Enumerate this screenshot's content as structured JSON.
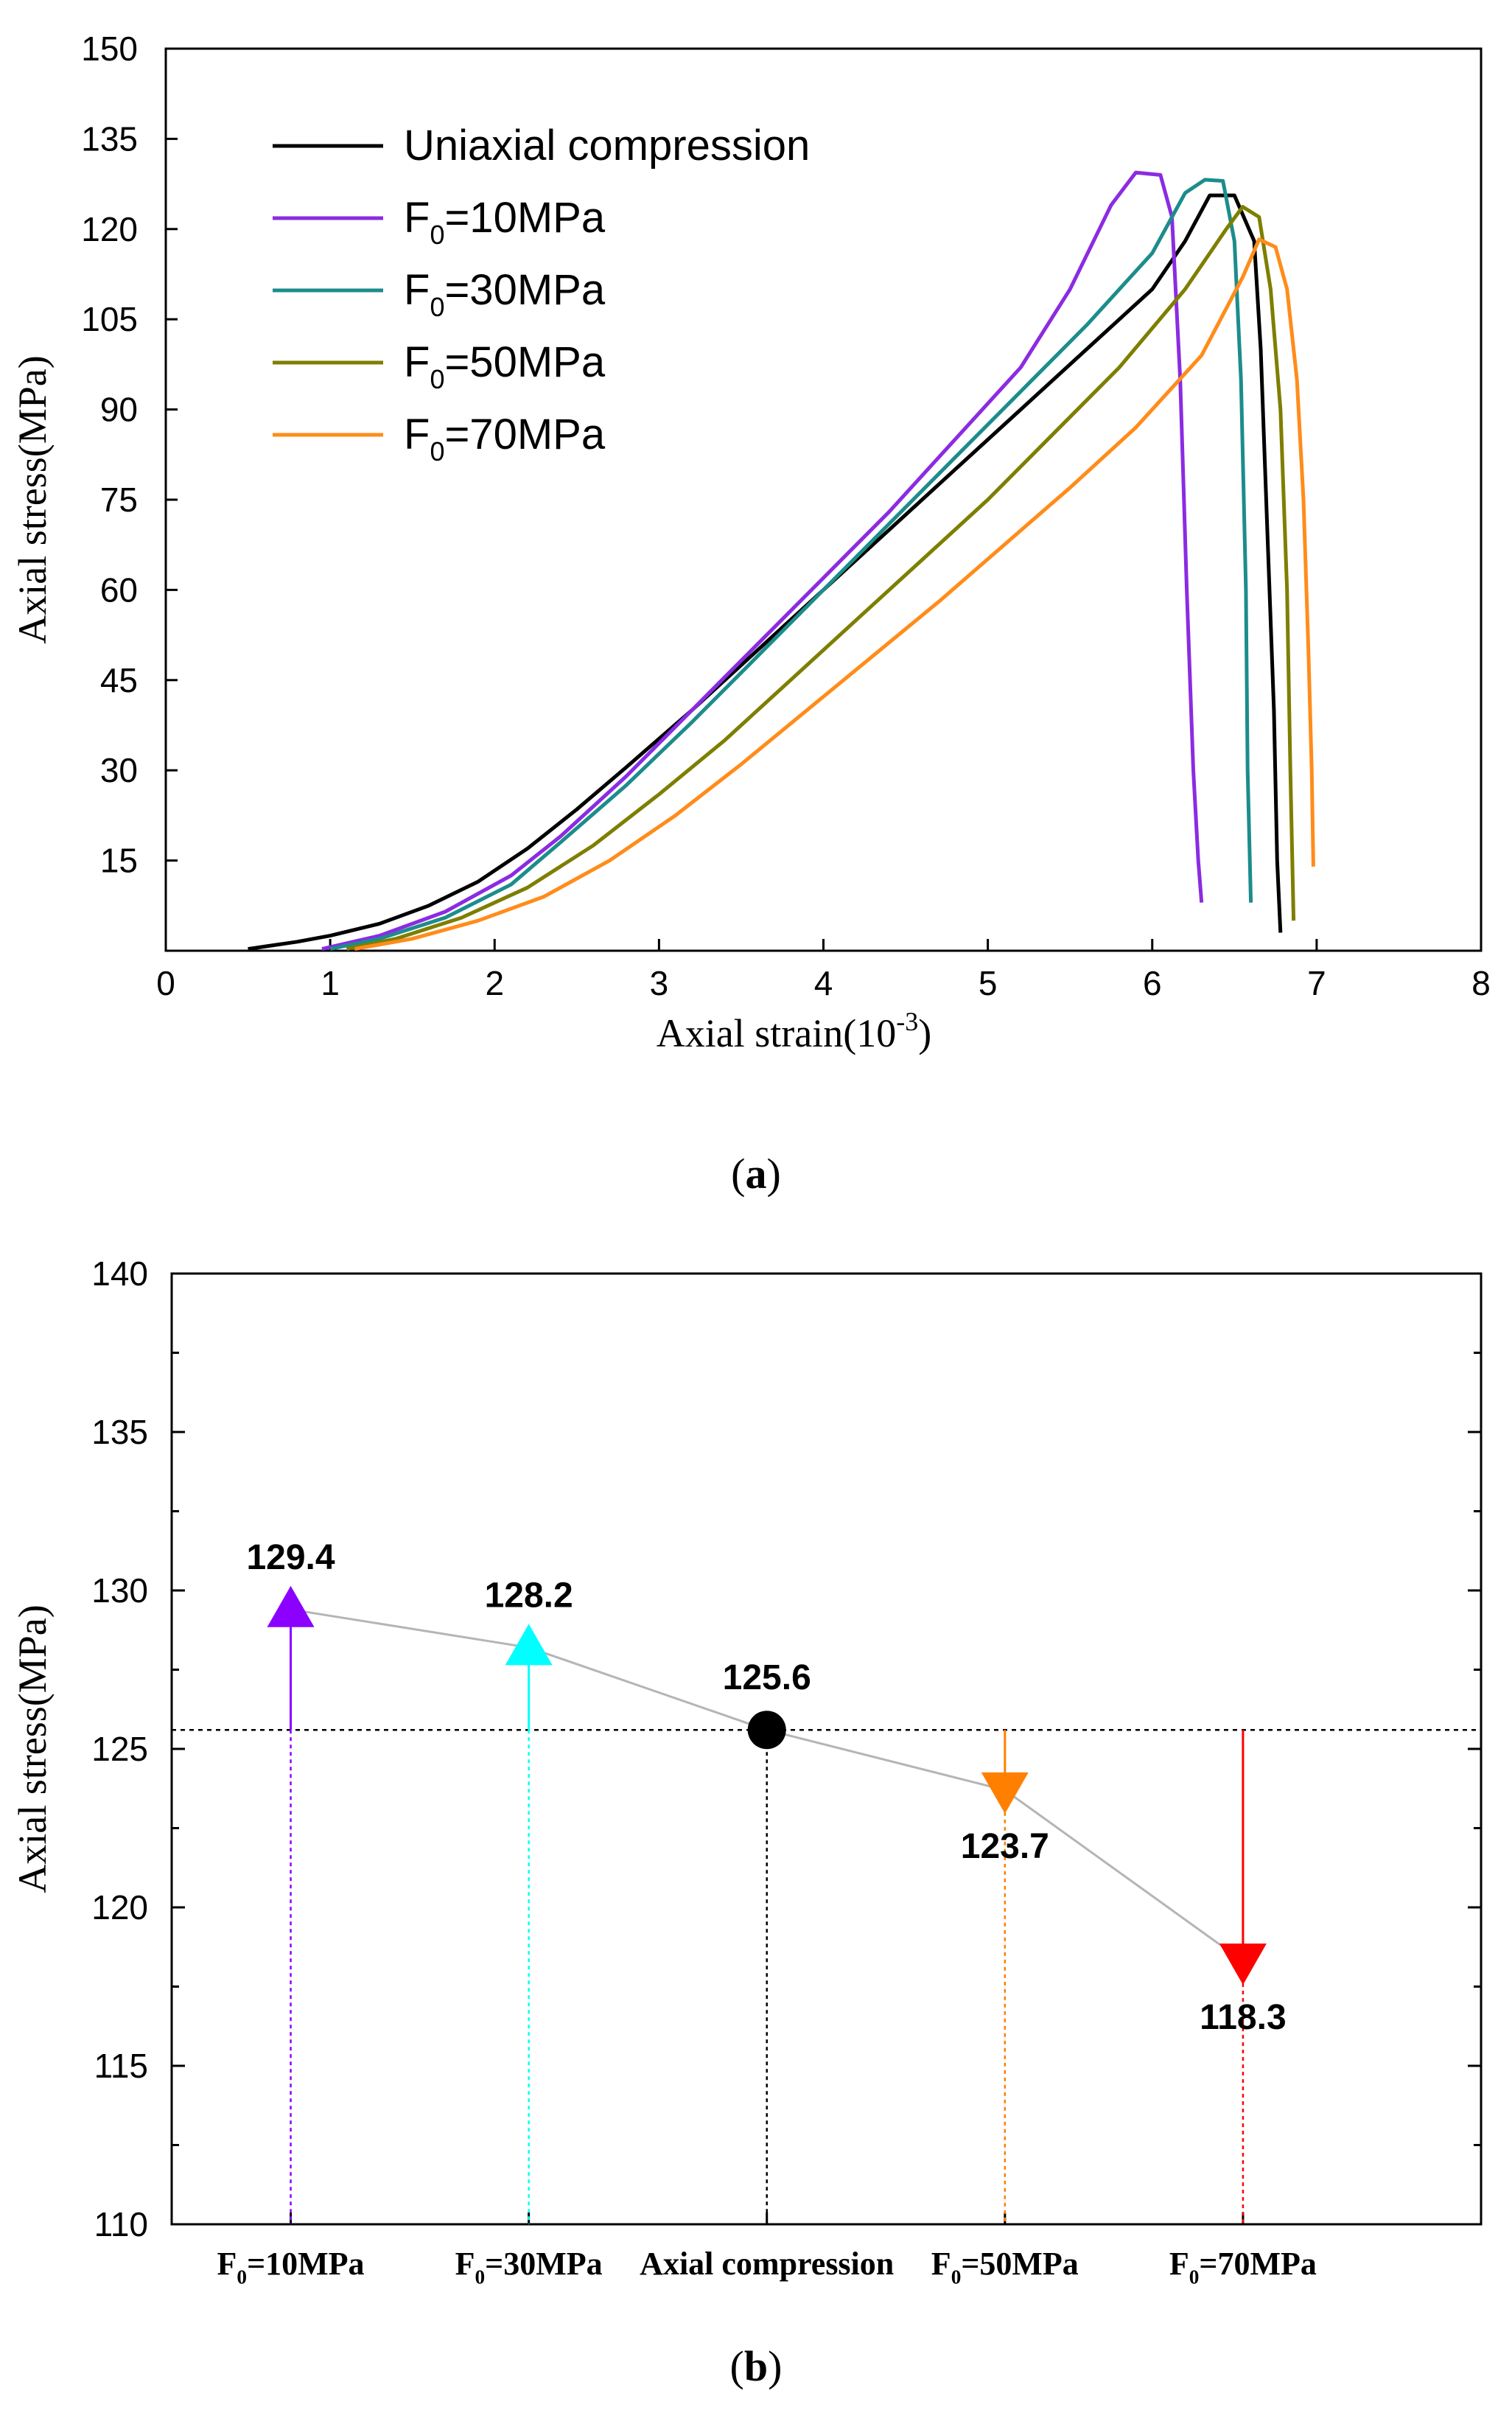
{
  "panel_labels": {
    "a": "a",
    "b": "b"
  },
  "chart_data": [
    {
      "panel": "a",
      "type": "line",
      "xlabel": "Axial strain(10",
      "xlabel_sup": "-3",
      "xlabel_tail": ")",
      "ylabel": "Axial stress(MPa)",
      "xlim": [
        0,
        8
      ],
      "ylim": [
        0,
        150
      ],
      "xticks": [
        0,
        1,
        2,
        3,
        4,
        5,
        6,
        7,
        8
      ],
      "yticks": [
        15,
        30,
        45,
        60,
        75,
        90,
        105,
        120,
        135,
        150
      ],
      "legend_position": "top-left",
      "series": [
        {
          "name": "Uniaxial compression",
          "color": "#000000",
          "points": [
            [
              0.5,
              0.3
            ],
            [
              0.8,
              1.5
            ],
            [
              1.0,
              2.5
            ],
            [
              1.3,
              4.5
            ],
            [
              1.6,
              7.5
            ],
            [
              1.9,
              11.5
            ],
            [
              2.2,
              17
            ],
            [
              2.5,
              23.5
            ],
            [
              2.8,
              30.5
            ],
            [
              3.2,
              40
            ],
            [
              3.6,
              50
            ],
            [
              4.0,
              60
            ],
            [
              4.4,
              70
            ],
            [
              4.8,
              80
            ],
            [
              5.2,
              90
            ],
            [
              5.6,
              100
            ],
            [
              6.0,
              110
            ],
            [
              6.2,
              118
            ],
            [
              6.35,
              125.6
            ],
            [
              6.5,
              125.6
            ],
            [
              6.62,
              118
            ],
            [
              6.66,
              100
            ],
            [
              6.7,
              70
            ],
            [
              6.74,
              40
            ],
            [
              6.76,
              15
            ],
            [
              6.78,
              3
            ]
          ]
        },
        {
          "name": "F0=10MPa",
          "sub_prefix": "F",
          "sub": "0",
          "sub_suffix": "=10MPa",
          "color": "#8B2BE2",
          "points": [
            [
              0.95,
              0.3
            ],
            [
              1.3,
              2.5
            ],
            [
              1.7,
              6.5
            ],
            [
              2.1,
              12.5
            ],
            [
              2.4,
              19
            ],
            [
              2.8,
              29
            ],
            [
              3.2,
              40
            ],
            [
              3.6,
              51
            ],
            [
              4.0,
              62
            ],
            [
              4.4,
              73
            ],
            [
              4.8,
              85
            ],
            [
              5.2,
              97
            ],
            [
              5.5,
              110
            ],
            [
              5.75,
              124
            ],
            [
              5.9,
              129.4
            ],
            [
              6.05,
              129
            ],
            [
              6.12,
              122
            ],
            [
              6.17,
              95
            ],
            [
              6.21,
              60
            ],
            [
              6.25,
              30
            ],
            [
              6.28,
              15
            ],
            [
              6.3,
              8
            ]
          ]
        },
        {
          "name": "F0=30MPa",
          "sub_prefix": "F",
          "sub": "0",
          "sub_suffix": "=30MPa",
          "color": "#1C8C8C",
          "points": [
            [
              1.0,
              0.3
            ],
            [
              1.3,
              2
            ],
            [
              1.7,
              5.5
            ],
            [
              2.1,
              11
            ],
            [
              2.4,
              18
            ],
            [
              2.8,
              27.5
            ],
            [
              3.2,
              38
            ],
            [
              3.6,
              49
            ],
            [
              4.0,
              60
            ],
            [
              4.4,
              71
            ],
            [
              4.8,
              82
            ],
            [
              5.2,
              93
            ],
            [
              5.6,
              104
            ],
            [
              6.0,
              116
            ],
            [
              6.2,
              126
            ],
            [
              6.32,
              128.2
            ],
            [
              6.43,
              128
            ],
            [
              6.5,
              118
            ],
            [
              6.54,
              95
            ],
            [
              6.57,
              60
            ],
            [
              6.58,
              30
            ],
            [
              6.6,
              8
            ]
          ]
        },
        {
          "name": "F0=50MPa",
          "sub_prefix": "F",
          "sub": "0",
          "sub_suffix": "=50MPa",
          "color": "#7E7E00",
          "points": [
            [
              1.1,
              0.3
            ],
            [
              1.4,
              2
            ],
            [
              1.8,
              5.5
            ],
            [
              2.2,
              10.5
            ],
            [
              2.6,
              17.5
            ],
            [
              3.0,
              26
            ],
            [
              3.4,
              35
            ],
            [
              3.8,
              45
            ],
            [
              4.2,
              55
            ],
            [
              4.6,
              65
            ],
            [
              5.0,
              75
            ],
            [
              5.4,
              86
            ],
            [
              5.8,
              97
            ],
            [
              6.2,
              110
            ],
            [
              6.45,
              120
            ],
            [
              6.55,
              123.7
            ],
            [
              6.65,
              122
            ],
            [
              6.72,
              110
            ],
            [
              6.78,
              90
            ],
            [
              6.82,
              60
            ],
            [
              6.84,
              30
            ],
            [
              6.86,
              5
            ]
          ]
        },
        {
          "name": "F0=70MPa",
          "sub_prefix": "F",
          "sub": "0",
          "sub_suffix": "=70MPa",
          "color": "#FF8C1A",
          "points": [
            [
              1.15,
              0.3
            ],
            [
              1.5,
              2
            ],
            [
              1.9,
              5
            ],
            [
              2.3,
              9
            ],
            [
              2.7,
              15
            ],
            [
              3.1,
              22.5
            ],
            [
              3.5,
              31
            ],
            [
              3.9,
              40
            ],
            [
              4.3,
              49
            ],
            [
              4.7,
              58
            ],
            [
              5.1,
              67.5
            ],
            [
              5.5,
              77
            ],
            [
              5.9,
              87
            ],
            [
              6.3,
              99
            ],
            [
              6.55,
              112
            ],
            [
              6.65,
              118.3
            ],
            [
              6.75,
              117
            ],
            [
              6.82,
              110
            ],
            [
              6.88,
              95
            ],
            [
              6.92,
              75
            ],
            [
              6.95,
              50
            ],
            [
              6.97,
              30
            ],
            [
              6.98,
              14
            ]
          ]
        }
      ]
    },
    {
      "panel": "b",
      "type": "scatter",
      "ylabel": "Axial stress(MPa)",
      "ylim": [
        110,
        140
      ],
      "yticks": [
        110,
        115,
        120,
        125,
        130,
        135,
        140
      ],
      "reference_value": 125.6,
      "categories": [
        "F0=10MPa",
        "F0=30MPa",
        "Axial compression",
        "F0=50MPa",
        "F0=70MPa"
      ],
      "category_labels": [
        {
          "prefix": "F",
          "sub": "0",
          "suffix": "=10MPa"
        },
        {
          "prefix": "F",
          "sub": "0",
          "suffix": "=30MPa"
        },
        {
          "prefix": "Axial compression",
          "sub": "",
          "suffix": ""
        },
        {
          "prefix": "F",
          "sub": "0",
          "suffix": "=50MPa"
        },
        {
          "prefix": "F",
          "sub": "0",
          "suffix": "=70MPa"
        }
      ],
      "points": [
        {
          "value": 129.4,
          "label": "129.4",
          "marker": "triangle-up",
          "color": "#8B00FF",
          "label_side": "above"
        },
        {
          "value": 128.2,
          "label": "128.2",
          "marker": "triangle-up",
          "color": "#00FFFF",
          "label_side": "above"
        },
        {
          "value": 125.6,
          "label": "125.6",
          "marker": "circle",
          "color": "#000000",
          "label_side": "above"
        },
        {
          "value": 123.7,
          "label": "123.7",
          "marker": "triangle-down",
          "color": "#FF8000",
          "label_side": "below"
        },
        {
          "value": 118.3,
          "label": "118.3",
          "marker": "triangle-down",
          "color": "#FF0000",
          "label_side": "below"
        }
      ]
    }
  ]
}
